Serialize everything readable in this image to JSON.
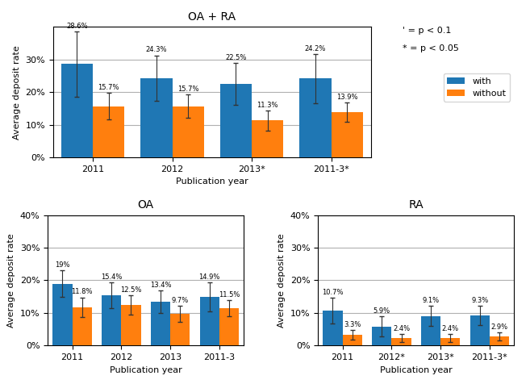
{
  "chart_data": [
    {
      "type": "bar",
      "title": "OA + RA",
      "xlabel": "Publication year",
      "ylabel": "Average deposit rate",
      "categories": [
        "2011",
        "2012",
        "2013*",
        "2011-3*"
      ],
      "series": [
        {
          "name": "with",
          "values": [
            0.286,
            0.243,
            0.225,
            0.242
          ],
          "errors": [
            0.1,
            0.07,
            0.065,
            0.075
          ],
          "value_labels": [
            "28.6%",
            "24.3%",
            "22.5%",
            "24.2%"
          ]
        },
        {
          "name": "without",
          "values": [
            0.157,
            0.157,
            0.113,
            0.139
          ],
          "errors": [
            0.04,
            0.035,
            0.03,
            0.03
          ],
          "value_labels": [
            "15.7%",
            "15.7%",
            "11.3%",
            "13.9%"
          ]
        }
      ],
      "ylim": [
        0,
        0.4
      ],
      "yticks": [
        {
          "value": 0.0,
          "label": "0%"
        },
        {
          "value": 0.1,
          "label": "10%"
        },
        {
          "value": 0.2,
          "label": "20%"
        },
        {
          "value": 0.3,
          "label": "30%"
        }
      ],
      "grid": true,
      "data_labels": true,
      "legend": "upper right",
      "annotations": [
        "' = p < 0.1",
        "* = p < 0.05"
      ]
    },
    {
      "type": "bar",
      "title": "OA",
      "xlabel": "Publication year",
      "ylabel": "Average deposit rate",
      "categories": [
        "2011",
        "2012",
        "2013",
        "2011-3"
      ],
      "series": [
        {
          "name": "with",
          "values": [
            0.19,
            0.154,
            0.134,
            0.149
          ],
          "errors": [
            0.04,
            0.04,
            0.035,
            0.045
          ],
          "value_labels": [
            "19%",
            "15.4%",
            "13.4%",
            "14.9%"
          ]
        },
        {
          "name": "without",
          "values": [
            0.118,
            0.125,
            0.097,
            0.115
          ],
          "errors": [
            0.03,
            0.03,
            0.025,
            0.025
          ],
          "value_labels": [
            "11.8%",
            "12.5%",
            "9.7%",
            "11.5%"
          ]
        }
      ],
      "ylim": [
        0,
        0.4
      ],
      "yticks": [
        {
          "value": 0.0,
          "label": "0%"
        },
        {
          "value": 0.1,
          "label": "10%"
        },
        {
          "value": 0.2,
          "label": "20%"
        },
        {
          "value": 0.3,
          "label": "30%"
        },
        {
          "value": 0.4,
          "label": "40%"
        }
      ],
      "grid": true,
      "data_labels": true
    },
    {
      "type": "bar",
      "title": "RA",
      "xlabel": "Publication year",
      "ylabel": "Average deposit rate",
      "categories": [
        "2011",
        "2012*",
        "2013*",
        "2011-3*"
      ],
      "series": [
        {
          "name": "with",
          "values": [
            0.107,
            0.059,
            0.091,
            0.093
          ],
          "errors": [
            0.04,
            0.03,
            0.03,
            0.03
          ],
          "value_labels": [
            "10.7%",
            "5.9%",
            "9.1%",
            "9.3%"
          ]
        },
        {
          "name": "without",
          "values": [
            0.033,
            0.024,
            0.024,
            0.029
          ],
          "errors": [
            0.015,
            0.012,
            0.012,
            0.012
          ],
          "value_labels": [
            "3.3%",
            "2.4%",
            "2.4%",
            "2.9%"
          ]
        }
      ],
      "ylim": [
        0,
        0.4
      ],
      "yticks": [
        {
          "value": 0.0,
          "label": "0%"
        },
        {
          "value": 0.1,
          "label": "10%"
        },
        {
          "value": 0.2,
          "label": "20%"
        },
        {
          "value": 0.3,
          "label": "30%"
        },
        {
          "value": 0.4,
          "label": "40%"
        }
      ],
      "grid": true,
      "data_labels": true
    }
  ]
}
